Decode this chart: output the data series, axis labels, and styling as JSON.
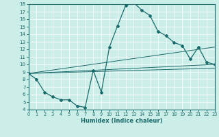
{
  "xlabel": "Humidex (Indice chaleur)",
  "xlim": [
    0,
    23
  ],
  "ylim": [
    4,
    18
  ],
  "xticks": [
    0,
    1,
    2,
    3,
    4,
    5,
    6,
    7,
    8,
    9,
    10,
    11,
    12,
    13,
    14,
    15,
    16,
    17,
    18,
    19,
    20,
    21,
    22,
    23
  ],
  "yticks": [
    4,
    5,
    6,
    7,
    8,
    9,
    10,
    11,
    12,
    13,
    14,
    15,
    16,
    17,
    18
  ],
  "bg_color": "#cceee8",
  "line_color": "#1a6b6b",
  "line1_x": [
    0,
    1,
    2,
    3,
    4,
    5,
    6,
    7,
    8,
    9,
    10,
    11,
    12,
    13,
    14,
    15,
    16,
    17,
    18,
    19,
    20,
    21,
    22,
    23
  ],
  "line1_y": [
    8.8,
    8.0,
    6.3,
    5.7,
    5.3,
    5.3,
    4.5,
    4.3,
    9.2,
    6.3,
    12.3,
    15.1,
    17.8,
    18.2,
    17.2,
    16.5,
    14.4,
    13.8,
    12.9,
    12.5,
    10.7,
    12.3,
    10.3,
    10.0
  ],
  "line2_x": [
    0,
    23
  ],
  "line2_y": [
    8.8,
    10.0
  ],
  "line3_x": [
    0,
    23
  ],
  "line3_y": [
    8.8,
    12.3
  ],
  "line4_x": [
    0,
    23
  ],
  "line4_y": [
    8.8,
    9.5
  ]
}
